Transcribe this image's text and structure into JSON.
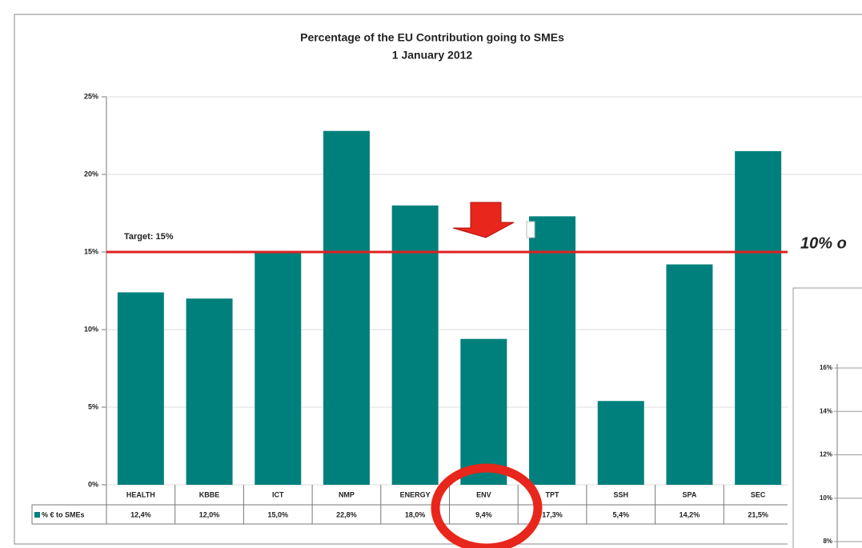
{
  "chart_data": [
    {
      "type": "bar",
      "title": "Percentage of the EU Contribution going to SMEs",
      "subtitle": "1 January 2012",
      "categories": [
        "HEALTH",
        "KBBE",
        "ICT",
        "NMP",
        "ENERGY",
        "ENV",
        "TPT",
        "SSH",
        "SPA",
        "SEC"
      ],
      "series": [
        {
          "name": "% € to SMEs",
          "color": "#00807c",
          "values": [
            12.4,
            12.0,
            15.0,
            22.8,
            18.0,
            9.4,
            17.3,
            5.4,
            14.2,
            21.5
          ],
          "value_labels": [
            "12,4%",
            "12,0%",
            "15,0%",
            "22,8%",
            "18,0%",
            "9,4%",
            "17,3%",
            "5,4%",
            "14,2%",
            "21,5%"
          ]
        }
      ],
      "ylim": [
        0,
        25
      ],
      "yticks": [
        {
          "value": 0,
          "label": "0%"
        },
        {
          "value": 5,
          "label": "5%"
        },
        {
          "value": 10,
          "label": "10%"
        },
        {
          "value": 15,
          "label": "15%"
        },
        {
          "value": 20,
          "label": "20%"
        },
        {
          "value": 25,
          "label": "25%"
        }
      ],
      "grid": true,
      "target": {
        "value": 15,
        "label": "Target: 15%",
        "color": "#e02020"
      }
    },
    {
      "type": "line",
      "title": "10% o",
      "ylim": [
        8,
        16
      ],
      "yticks": [
        {
          "value": 8,
          "label": "8%"
        },
        {
          "value": 10,
          "label": "10%"
        },
        {
          "value": 12,
          "label": "12%"
        },
        {
          "value": 14,
          "label": "14%"
        },
        {
          "value": 16,
          "label": "16%"
        }
      ]
    }
  ]
}
